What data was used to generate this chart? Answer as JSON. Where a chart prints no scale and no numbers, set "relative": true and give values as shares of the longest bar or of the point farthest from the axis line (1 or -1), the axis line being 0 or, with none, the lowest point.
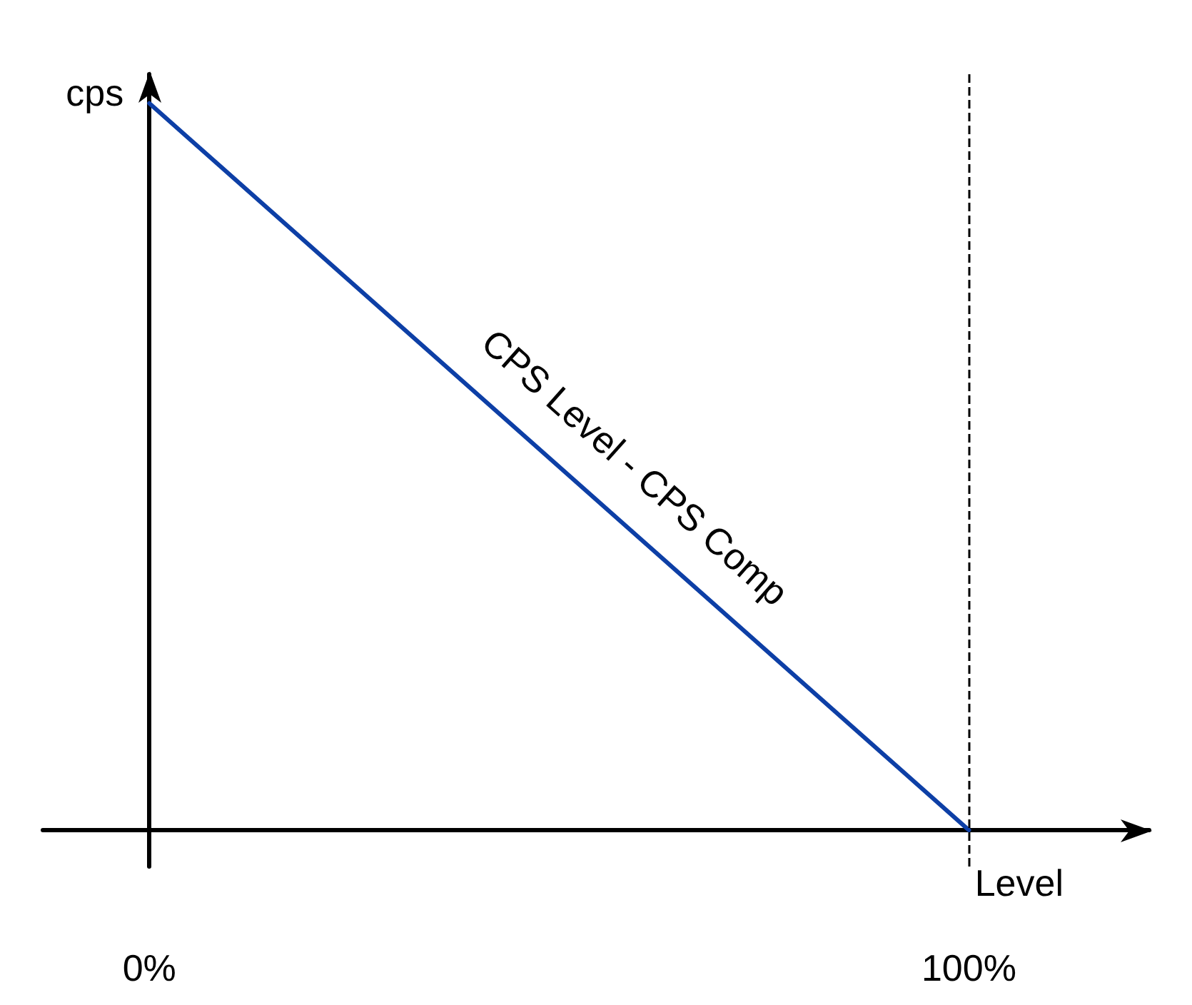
{
  "chart_data": {
    "type": "line",
    "relative": true,
    "xlabel": "Level",
    "ylabel": "cps",
    "xlim": [
      -13,
      122
    ],
    "xticks": [
      {
        "value": 0,
        "label": "0%"
      },
      {
        "value": 100,
        "label": "100%"
      }
    ],
    "x": [
      0,
      100
    ],
    "series": [
      {
        "name": "CPS Level - CPS Comp",
        "color": "#0d3fa6",
        "values": [
          1,
          0
        ]
      }
    ],
    "ref_lines": [
      {
        "axis": "x",
        "value": 100,
        "color": "#000000",
        "line_style": "dashed"
      }
    ],
    "marker": "none",
    "line_style": "solid"
  }
}
